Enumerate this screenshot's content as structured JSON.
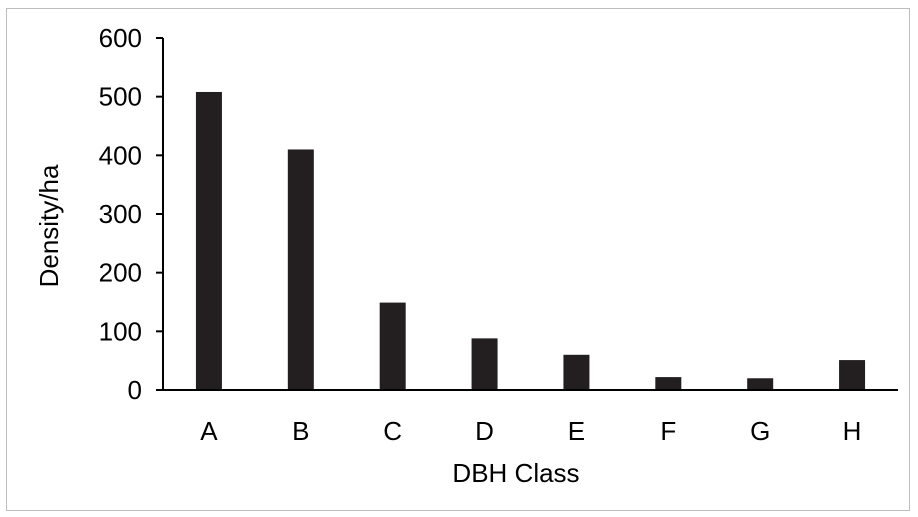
{
  "chart_data": {
    "type": "bar",
    "categories": [
      "A",
      "B",
      "C",
      "D",
      "E",
      "F",
      "G",
      "H"
    ],
    "values": [
      508,
      410,
      149,
      88,
      60,
      22,
      20,
      51
    ],
    "title": "",
    "xlabel": "DBH Class",
    "ylabel": "Density/ha",
    "ylim": [
      0,
      600
    ],
    "yticks": [
      0,
      100,
      200,
      300,
      400,
      500,
      600
    ],
    "grid": false,
    "legend": "none",
    "bar_color": "#231f20"
  }
}
